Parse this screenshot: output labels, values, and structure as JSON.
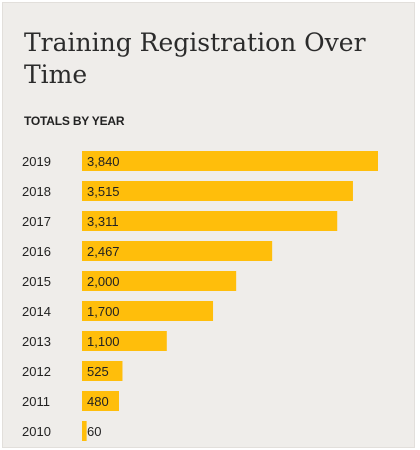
{
  "chart_data": {
    "type": "bar",
    "orientation": "horizontal",
    "title": "Training Registration Over Time",
    "subtitle": "TOTALS BY YEAR",
    "categories": [
      "2019",
      "2018",
      "2017",
      "2016",
      "2015",
      "2014",
      "2013",
      "2012",
      "2011",
      "2010"
    ],
    "values": [
      3840,
      3515,
      3311,
      2467,
      2000,
      1700,
      1100,
      525,
      480,
      60
    ],
    "value_labels": [
      "3,840",
      "3,515",
      "3,311",
      "2,467",
      "2,000",
      "1,700",
      "1,100",
      "525",
      "480",
      "60"
    ],
    "xlim": [
      0,
      3840
    ],
    "grid": false,
    "legend": "none",
    "bar_color": "#ffbe0b",
    "background_color": "#efedea"
  }
}
